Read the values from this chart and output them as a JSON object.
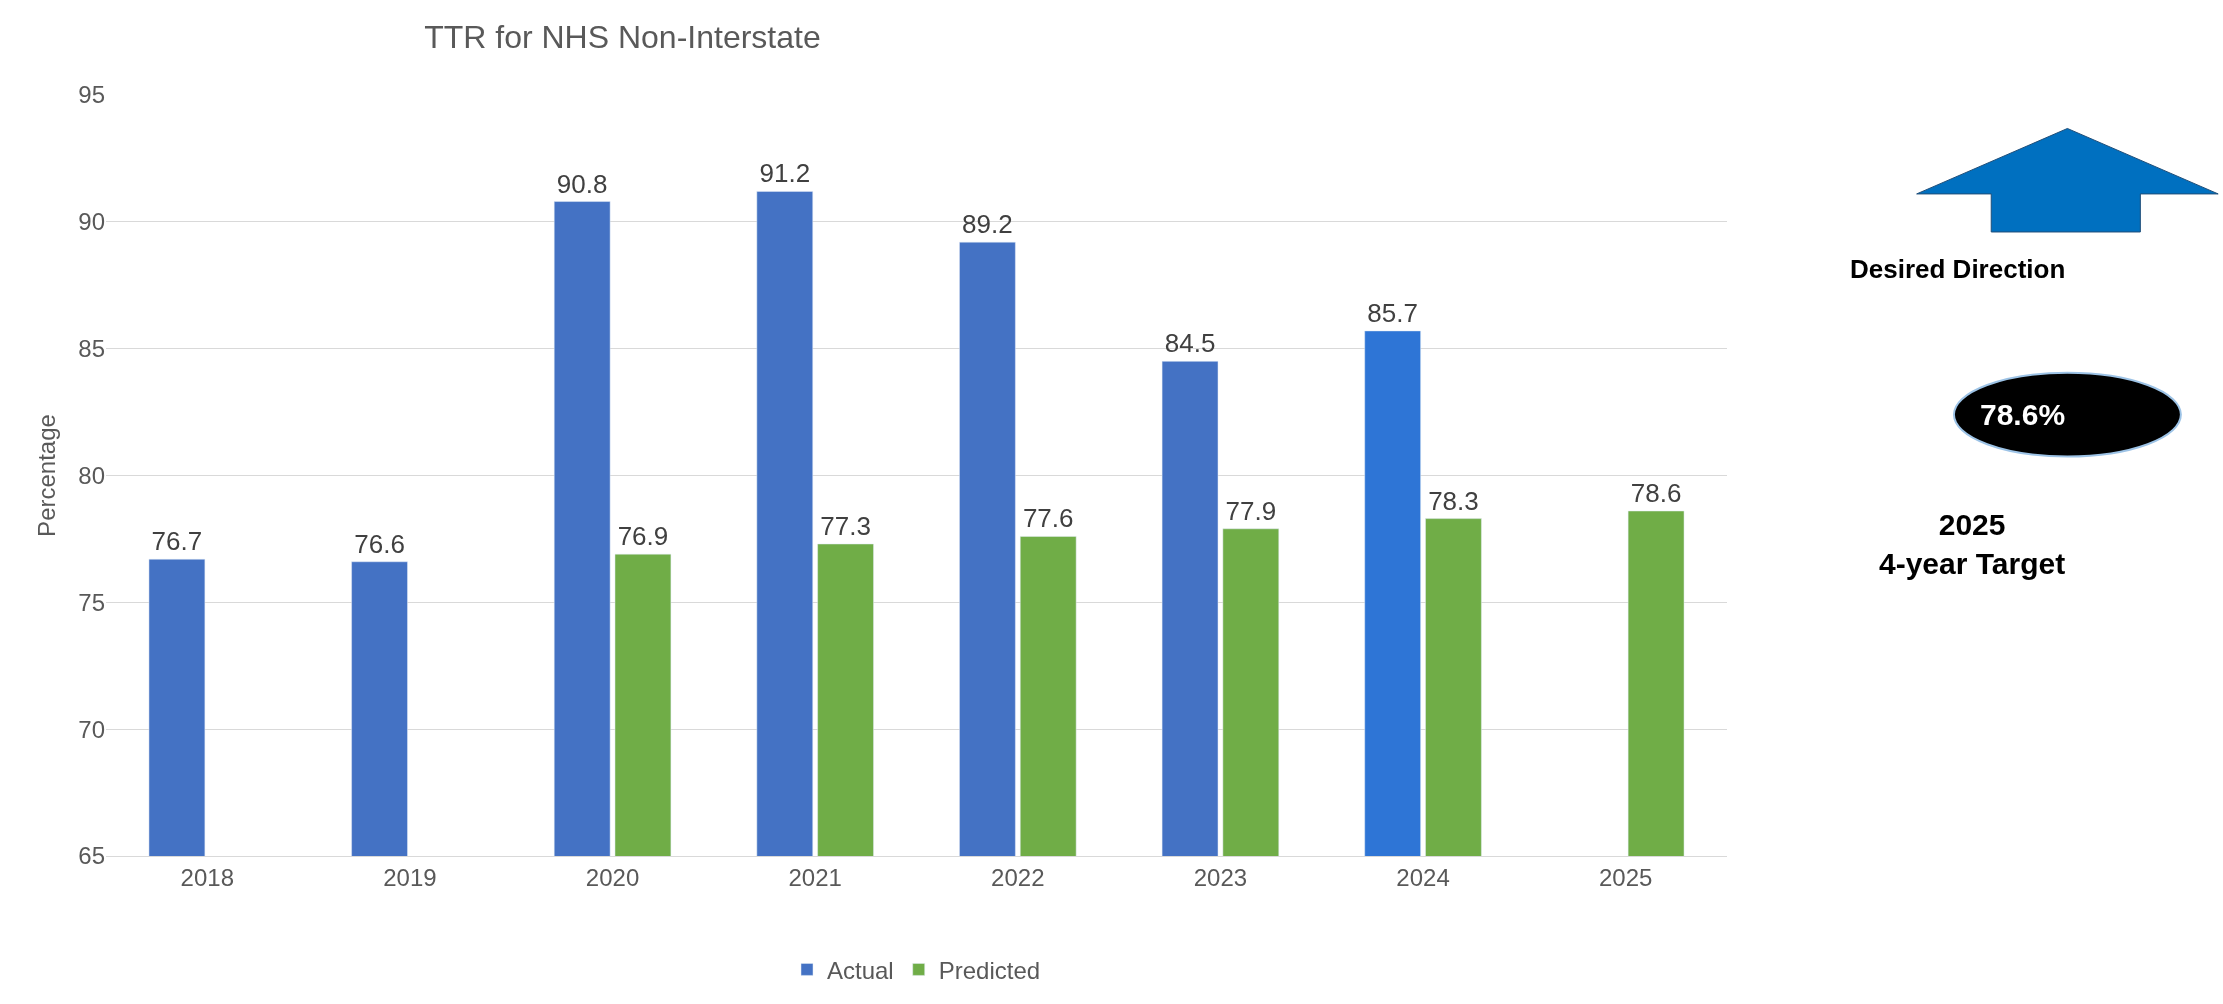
{
  "chart_data": {
    "type": "bar",
    "title": "TTR for NHS Non-Interstate",
    "ylabel": "Percentage",
    "categories": [
      "2018",
      "2019",
      "2020",
      "2021",
      "2022",
      "2023",
      "2024",
      "2025"
    ],
    "series": [
      {
        "name": "Actual",
        "color": "#4472c4",
        "colors": [
          "#4472c4",
          "#4472c4",
          "#4472c4",
          "#4472c4",
          "#4472c4",
          "#4472c4",
          "#2e75d6",
          "#4472c4"
        ],
        "values": [
          76.7,
          76.6,
          90.8,
          91.2,
          89.2,
          84.5,
          85.7,
          null
        ]
      },
      {
        "name": "Predicted",
        "color": "#70ad47",
        "values": [
          null,
          null,
          76.9,
          77.3,
          77.6,
          77.9,
          78.3,
          78.6
        ]
      }
    ],
    "ylim": [
      65,
      95
    ],
    "yticks": [
      65,
      70,
      75,
      80,
      85,
      90,
      95
    ],
    "grid": "y",
    "legend": "bottom",
    "data_labels": true,
    "annotations": [
      "Desired Direction",
      "78.6%",
      "2025\n4-year Target"
    ]
  }
}
